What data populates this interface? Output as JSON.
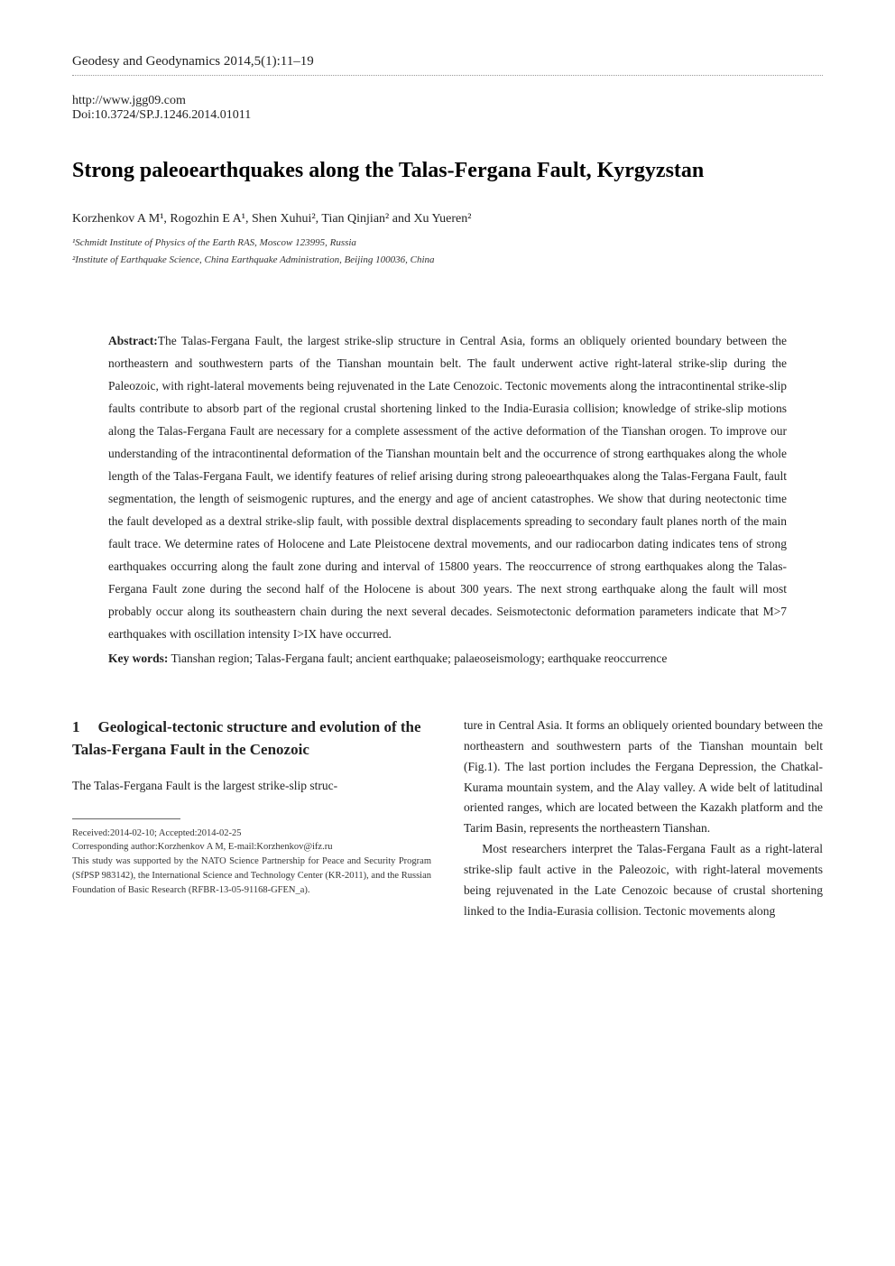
{
  "header": {
    "journal_line": "Geodesy and Geodynamics   2014,5(1):11–19",
    "url": "http://www.jgg09.com",
    "doi": "Doi:10.3724/SP.J.1246.2014.01011"
  },
  "title": "Strong paleoearthquakes along the Talas-Fergana Fault, Kyrgyzstan",
  "authors_line": "Korzhenkov A M¹, Rogozhin E A¹, Shen Xuhui², Tian Qinjian² and Xu Yueren²",
  "affiliations": {
    "aff1": "¹Schmidt Institute of Physics of the Earth RAS, Moscow 123995, Russia",
    "aff2": "²Institute of Earthquake Science, China Earthquake Administration, Beijing 100036, China"
  },
  "abstract": {
    "label": "Abstract:",
    "text": "The Talas-Fergana Fault, the largest strike-slip structure in Central Asia, forms an obliquely oriented boundary between the northeastern and southwestern parts of the Tianshan mountain belt. The fault underwent active right-lateral strike-slip during the Paleozoic, with right-lateral movements being rejuvenated in the Late Cenozoic. Tectonic movements along the intracontinental strike-slip faults contribute to absorb part of the regional crustal shortening linked to the India-Eurasia collision; knowledge of strike-slip motions along the Talas-Fergana Fault are necessary for a complete assessment of the active deformation of the Tianshan orogen. To improve our understanding of the intracontinental deformation of the Tianshan mountain belt and the occurrence of strong earthquakes along the whole length of the Talas-Fergana Fault, we identify features of relief arising during strong paleoearthquakes along the Talas-Fergana Fault, fault segmentation, the length of seismogenic ruptures, and the energy and age of ancient catastrophes. We show that during neotectonic time the fault developed as a dextral strike-slip fault, with possible dextral displacements spreading to secondary fault planes north of the main fault trace. We determine rates of Holocene and Late Pleistocene dextral movements, and our radiocarbon dating indicates tens of strong earthquakes occurring along the fault zone during and interval of 15800 years. The reoccurrence of strong earthquakes along the Talas-Fergana Fault zone during the second half of the Holocene is about 300 years. The next strong earthquake along the fault will most probably occur along its southeastern chain during the next several decades. Seismotectonic deformation parameters indicate that M>7 earthquakes with oscillation intensity I>IX have occurred."
  },
  "keywords": {
    "label": "Key words:",
    "text": " Tianshan region; Talas-Fergana fault; ancient earthquake; palaeoseismology; earthquake reoccurrence"
  },
  "section1": {
    "number": "1",
    "title": "Geological-tectonic structure and evolution of the Talas-Fergana Fault in the Cenozoic"
  },
  "body": {
    "left_p1": "The Talas-Fergana Fault is the largest strike-slip struc-",
    "right_p1": "ture in Central Asia. It forms an obliquely oriented boundary between the northeastern and southwestern parts of the Tianshan mountain belt (Fig.1). The last portion includes the Fergana Depression, the Chatkal-Kurama mountain system, and the Alay valley. A wide belt of latitudinal oriented ranges, which are located between the Kazakh platform and the Tarim Basin, represents the northeastern Tianshan.",
    "right_p2": "Most researchers interpret the Talas-Fergana Fault as a right-lateral strike-slip fault active in the Paleozoic, with right-lateral movements being rejuvenated in the Late Cenozoic because of crustal shortening linked to the India-Eurasia collision. Tectonic movements along"
  },
  "footnotes": {
    "received": "Received:2014-02-10; Accepted:2014-02-25",
    "corresponding": "Corresponding author:Korzhenkov A M, E-mail:Korzhenkov@ifz.ru",
    "funding": "This study was supported by the NATO Science Partnership for Peace and Security Program (SfPSP 983142), the International Science and Technology Center (KR-2011), and the Russian Foundation of Basic Research (RFBR-13-05-91168-GFEN_a)."
  },
  "style": {
    "page_bg": "#ffffff",
    "text_color": "#000000",
    "title_fontsize": 24,
    "body_fontsize": 13.5,
    "footnote_fontsize": 10.5
  }
}
